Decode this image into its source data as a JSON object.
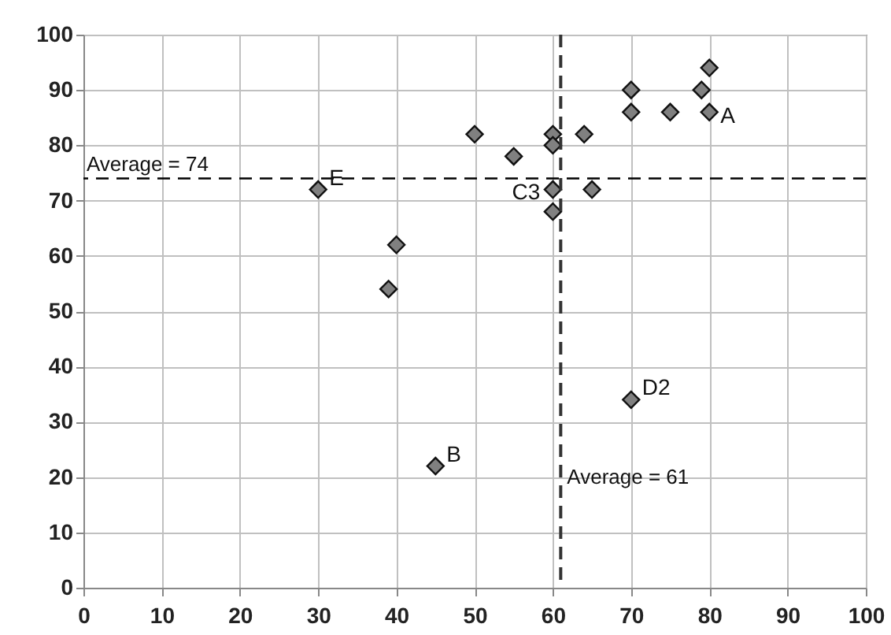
{
  "chart_data": {
    "type": "scatter",
    "x": [
      30,
      39,
      40,
      45,
      50,
      55,
      60,
      60,
      60,
      60,
      64,
      65,
      70,
      70,
      70,
      75,
      79,
      80,
      80
    ],
    "series": [
      {
        "color": "#808080",
        "values": [
          72,
          54,
          62,
          22,
          82,
          78,
          82,
          80,
          72,
          68,
          82,
          72,
          90,
          86,
          34,
          86,
          90,
          94,
          86
        ]
      }
    ],
    "annotations": [
      {
        "text": "A",
        "x": 80,
        "y": 86
      },
      {
        "text": "B",
        "x": 45,
        "y": 22
      },
      {
        "text": "C3",
        "x": 60,
        "y": 72
      },
      {
        "text": "D2",
        "x": 70,
        "y": 34
      },
      {
        "text": "E",
        "x": 30,
        "y": 72
      }
    ],
    "ref_lines": [
      {
        "axis": "y",
        "value": 74,
        "label": "Average = 74",
        "line_style": "dashed",
        "color": "#000000"
      },
      {
        "axis": "x",
        "value": 61,
        "label": "Average = 61",
        "line_style": "dashed",
        "color": "#333333"
      }
    ],
    "xlim": [
      0,
      100
    ],
    "xticks": [
      0,
      10,
      20,
      30,
      40,
      50,
      60,
      70,
      80,
      90,
      100
    ],
    "ylim": [
      0,
      100
    ],
    "yticks": [
      0,
      10,
      20,
      30,
      40,
      50,
      60,
      70,
      80,
      90,
      100
    ],
    "grid": true,
    "marker": "diamond"
  }
}
